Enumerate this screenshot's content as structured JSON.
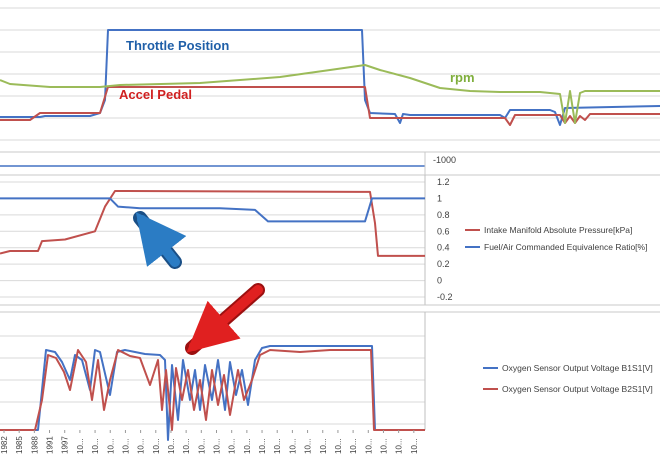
{
  "chart_data": [
    {
      "type": "line",
      "annotations": [
        "Throttle Position",
        "Accel Pedal",
        "rpm"
      ],
      "series": [
        {
          "name": "Throttle Position",
          "color": "#4472c4",
          "points": [
            [
              0,
              117
            ],
            [
              40,
              117
            ],
            [
              45,
              116
            ],
            [
              90,
              116
            ],
            [
              100,
              113
            ],
            [
              105,
              100
            ],
            [
              108,
              30
            ],
            [
              362,
              30
            ],
            [
              365,
              100
            ],
            [
              370,
              113
            ],
            [
              395,
              114
            ],
            [
              400,
              123
            ],
            [
              403,
              114
            ],
            [
              410,
              115
            ],
            [
              500,
              115
            ],
            [
              505,
              118
            ],
            [
              510,
              110
            ],
            [
              550,
              110
            ],
            [
              555,
              112
            ],
            [
              560,
              125
            ],
            [
              565,
              108
            ],
            [
              660,
              106
            ]
          ]
        },
        {
          "name": "Accel Pedal",
          "color": "#c0504d",
          "points": [
            [
              0,
              120
            ],
            [
              30,
              120
            ],
            [
              40,
              113
            ],
            [
              100,
              113
            ],
            [
              108,
              87
            ],
            [
              365,
              87
            ],
            [
              370,
              118
            ],
            [
              505,
              118
            ],
            [
              510,
              125
            ],
            [
              515,
              115
            ],
            [
              560,
              115
            ],
            [
              565,
              123
            ],
            [
              570,
              116
            ],
            [
              575,
              123
            ],
            [
              580,
              116
            ],
            [
              585,
              120
            ],
            [
              590,
              114
            ],
            [
              660,
              114
            ]
          ]
        },
        {
          "name": "rpm",
          "color": "#9bbb59",
          "points": [
            [
              0,
              80
            ],
            [
              10,
              84
            ],
            [
              50,
              87
            ],
            [
              100,
              87
            ],
            [
              120,
              85
            ],
            [
              200,
              83
            ],
            [
              280,
              77
            ],
            [
              330,
              70
            ],
            [
              365,
              65
            ],
            [
              380,
              70
            ],
            [
              410,
              78
            ],
            [
              440,
              88
            ],
            [
              470,
              91
            ],
            [
              500,
              92
            ],
            [
              540,
              92
            ],
            [
              560,
              94
            ],
            [
              565,
              123
            ],
            [
              570,
              91
            ],
            [
              575,
              123
            ],
            [
              580,
              93
            ],
            [
              585,
              91
            ],
            [
              620,
              91
            ],
            [
              660,
              91
            ]
          ]
        }
      ]
    },
    {
      "type": "line",
      "yticks": [
        "-1000"
      ]
    },
    {
      "type": "line",
      "ylim": [
        -0.2,
        1.2
      ],
      "yticks": [
        "1.2",
        "1",
        "0.8",
        "0.6",
        "0.4",
        "0.2",
        "0",
        "-0.2"
      ],
      "series": [
        {
          "name": "Intake Manifold Absolute Pressure[kPa]",
          "color": "#c0504d",
          "points": [
            [
              0,
              0.33
            ],
            [
              10,
              0.36
            ],
            [
              38,
              0.36
            ],
            [
              42,
              0.48
            ],
            [
              65,
              0.5
            ],
            [
              95,
              0.6
            ],
            [
              105,
              0.9
            ],
            [
              115,
              1.09
            ],
            [
              360,
              1.08
            ],
            [
              370,
              1.08
            ],
            [
              375,
              0.7
            ],
            [
              378,
              0.3
            ],
            [
              425,
              0.3
            ]
          ]
        },
        {
          "name": "Fuel/Air Commanded Equivalence Ratio[%]",
          "color": "#4472c4",
          "points": [
            [
              0,
              1.0
            ],
            [
              110,
              1.0
            ],
            [
              118,
              0.9
            ],
            [
              140,
              0.88
            ],
            [
              220,
              0.88
            ],
            [
              255,
              0.86
            ],
            [
              268,
              0.72
            ],
            [
              365,
              0.72
            ],
            [
              372,
              1.0
            ],
            [
              425,
              1.0
            ]
          ]
        }
      ]
    },
    {
      "type": "line",
      "x_tick_labels": [
        "1982",
        "1985",
        "1988",
        "1991",
        "1997",
        "10...",
        "10...",
        "10...",
        "10...",
        "10...",
        "10...",
        "10...",
        "10...",
        "10...",
        "10...",
        "10...",
        "10...",
        "10...",
        "10...",
        "10...",
        "10...",
        "10...",
        "10...",
        "10...",
        "10...",
        "10...",
        "10...",
        "10..."
      ],
      "series": [
        {
          "name": "Oxygen Sensor Output Voltage B1S1[V]",
          "color": "#4472c4",
          "points": [
            [
              0,
              430
            ],
            [
              38,
              430
            ],
            [
              46,
              350
            ],
            [
              55,
              352
            ],
            [
              62,
              362
            ],
            [
              70,
              380
            ],
            [
              75,
              355
            ],
            [
              82,
              360
            ],
            [
              90,
              390
            ],
            [
              95,
              350
            ],
            [
              100,
              352
            ],
            [
              110,
              395
            ],
            [
              117,
              352
            ],
            [
              125,
              350
            ],
            [
              135,
              352
            ],
            [
              145,
              354
            ],
            [
              160,
              355
            ],
            [
              165,
              360
            ],
            [
              168,
              440
            ],
            [
              172,
              365
            ],
            [
              178,
              420
            ],
            [
              183,
              360
            ],
            [
              190,
              400
            ],
            [
              195,
              370
            ],
            [
              200,
              410
            ],
            [
              205,
              365
            ],
            [
              212,
              400
            ],
            [
              218,
              360
            ],
            [
              225,
              410
            ],
            [
              230,
              362
            ],
            [
              236,
              395
            ],
            [
              242,
              370
            ],
            [
              248,
              405
            ],
            [
              255,
              360
            ],
            [
              262,
              348
            ],
            [
              270,
              346
            ],
            [
              365,
              346
            ],
            [
              372,
              346
            ],
            [
              375,
              430
            ],
            [
              425,
              430
            ]
          ]
        },
        {
          "name": "Oxygen Sensor Output Voltage B2S1[V]",
          "color": "#c0504d",
          "points": [
            [
              0,
              430
            ],
            [
              35,
              430
            ],
            [
              42,
              400
            ],
            [
              48,
              355
            ],
            [
              56,
              358
            ],
            [
              64,
              372
            ],
            [
              70,
              390
            ],
            [
              78,
              350
            ],
            [
              86,
              362
            ],
            [
              92,
              400
            ],
            [
              98,
              360
            ],
            [
              104,
              410
            ],
            [
              110,
              380
            ],
            [
              118,
              350
            ],
            [
              130,
              356
            ],
            [
              140,
              358
            ],
            [
              150,
              385
            ],
            [
              158,
              360
            ],
            [
              162,
              410
            ],
            [
              166,
              370
            ],
            [
              172,
              430
            ],
            [
              176,
              368
            ],
            [
              182,
              400
            ],
            [
              188,
              370
            ],
            [
              194,
              410
            ],
            [
              200,
              380
            ],
            [
              206,
              420
            ],
            [
              212,
              370
            ],
            [
              218,
              405
            ],
            [
              224,
              375
            ],
            [
              230,
              415
            ],
            [
              238,
              370
            ],
            [
              244,
              400
            ],
            [
              252,
              380
            ],
            [
              260,
              355
            ],
            [
              270,
              350
            ],
            [
              300,
              352
            ],
            [
              330,
              350
            ],
            [
              368,
              350
            ],
            [
              371,
              350
            ],
            [
              374,
              430
            ],
            [
              425,
              430
            ]
          ]
        }
      ]
    }
  ]
}
